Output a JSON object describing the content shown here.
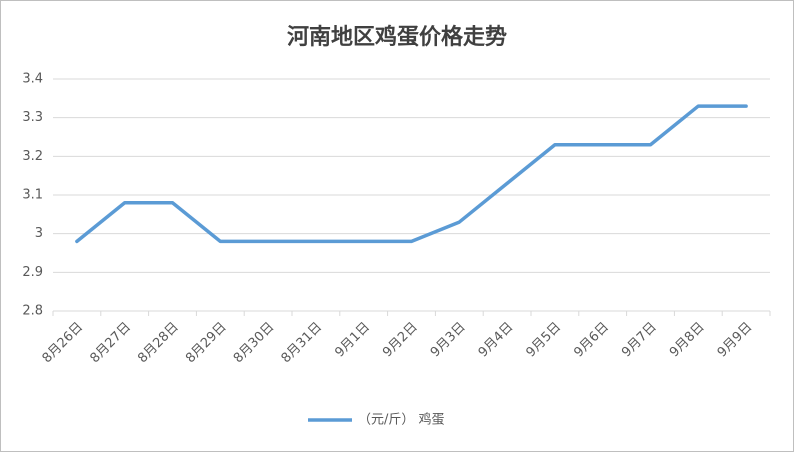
{
  "chart_data": {
    "type": "line",
    "title": "河南地区鸡蛋价格走势",
    "categories": [
      "8月26日",
      "8月27日",
      "8月28日",
      "8月29日",
      "8月30日",
      "8月31日",
      "9月1日",
      "9月2日",
      "9月3日",
      "9月4日",
      "9月5日",
      "9月6日",
      "9月7日",
      "9月8日",
      "9月9日"
    ],
    "series": [
      {
        "name": "（元/斤） 鸡蛋",
        "color": "#5b9bd5",
        "values": [
          2.98,
          3.08,
          3.08,
          2.98,
          2.98,
          2.98,
          2.98,
          2.98,
          3.03,
          3.13,
          3.23,
          3.23,
          3.23,
          3.33,
          3.33
        ]
      }
    ],
    "ylim": [
      2.8,
      3.4
    ],
    "yticks": [
      2.8,
      2.9,
      3,
      3.1,
      3.2,
      3.3,
      3.4
    ],
    "grid": true,
    "legend": "bottom"
  }
}
